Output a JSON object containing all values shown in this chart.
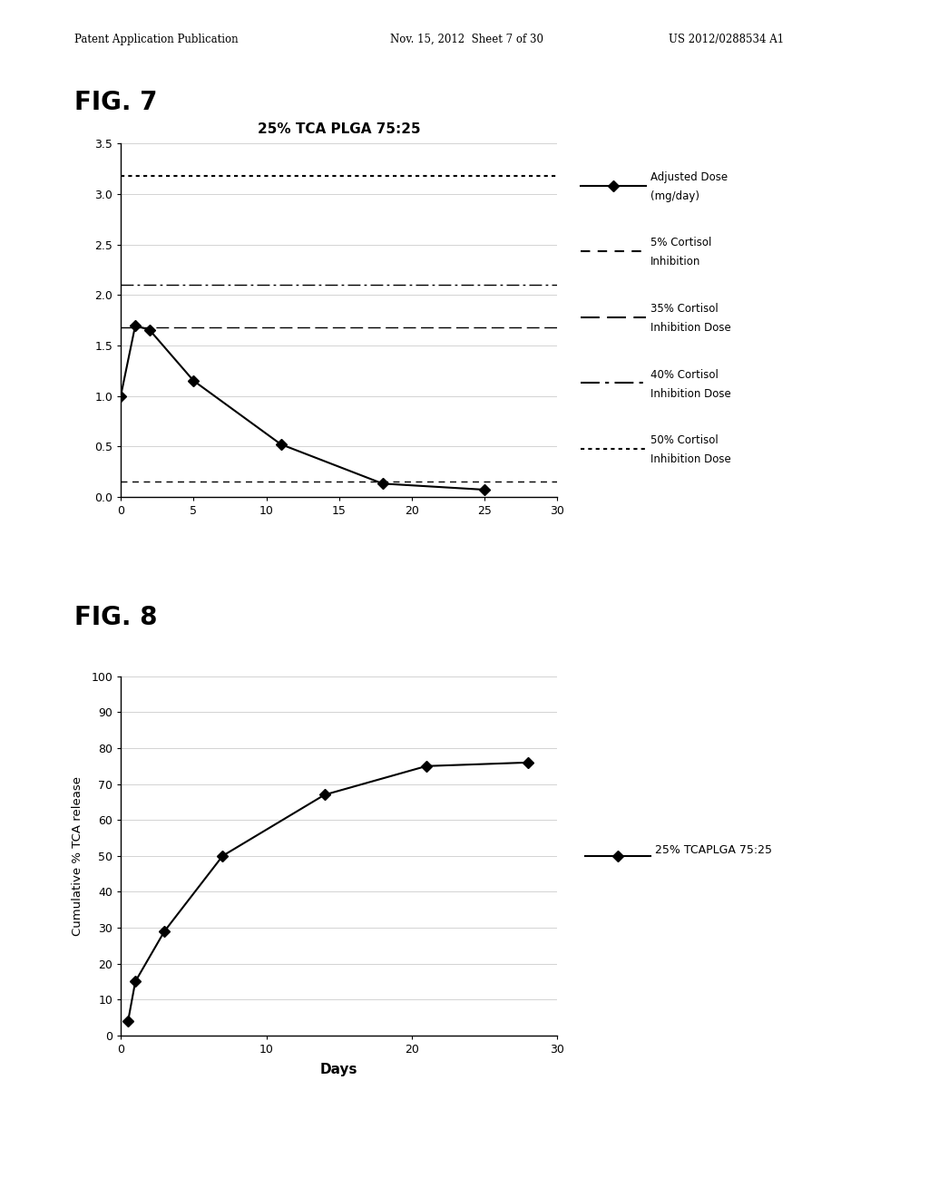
{
  "fig7": {
    "title": "25% TCA PLGA 75:25",
    "fig_label": "FIG. 7",
    "xlim": [
      0,
      30
    ],
    "ylim": [
      0.0,
      3.5
    ],
    "yticks": [
      0.0,
      0.5,
      1.0,
      1.5,
      2.0,
      2.5,
      3.0,
      3.5
    ],
    "xticks": [
      0,
      5,
      10,
      15,
      20,
      25,
      30
    ],
    "line_x": [
      0,
      1,
      2,
      5,
      11,
      18,
      25
    ],
    "line_y": [
      1.0,
      1.7,
      1.65,
      1.15,
      0.52,
      0.13,
      0.07
    ],
    "hlines": {
      "5pct": 0.15,
      "35pct": 1.68,
      "40pct": 2.1,
      "50pct": 3.18
    }
  },
  "fig8": {
    "fig_label": "FIG. 8",
    "xlabel": "Days",
    "ylabel": "Cumulative % TCA release",
    "xlim": [
      0,
      30
    ],
    "ylim": [
      0,
      100
    ],
    "yticks": [
      0,
      10,
      20,
      30,
      40,
      50,
      60,
      70,
      80,
      90,
      100
    ],
    "xticks": [
      0,
      10,
      20,
      30
    ],
    "line_x": [
      0.5,
      1,
      3,
      7,
      14,
      21,
      28
    ],
    "line_y": [
      4,
      15,
      29,
      50,
      67,
      75,
      76
    ],
    "legend_label": "25% TCAPLGA 75:25"
  },
  "header_left": "Patent Application Publication",
  "header_mid": "Nov. 15, 2012  Sheet 7 of 30",
  "header_right": "US 2012/0288534 A1",
  "bg_color": "#ffffff",
  "line_color": "#000000",
  "grid_color": "#cccccc"
}
